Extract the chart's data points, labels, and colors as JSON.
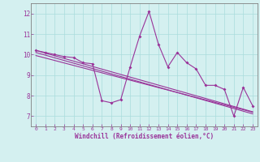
{
  "x": [
    0,
    1,
    2,
    3,
    4,
    5,
    6,
    7,
    8,
    9,
    10,
    11,
    12,
    13,
    14,
    15,
    16,
    17,
    18,
    19,
    20,
    21,
    22,
    23
  ],
  "y_main": [
    10.2,
    10.1,
    10.0,
    9.9,
    9.85,
    9.6,
    9.55,
    7.75,
    7.65,
    7.8,
    9.4,
    10.9,
    12.1,
    10.5,
    9.4,
    10.1,
    9.6,
    9.3,
    8.5,
    8.5,
    8.3,
    7.0,
    8.4,
    7.5
  ],
  "y_reg1": [
    10.2,
    10.07,
    9.94,
    9.81,
    9.68,
    9.55,
    9.42,
    9.29,
    9.16,
    9.03,
    8.9,
    8.77,
    8.64,
    8.51,
    8.38,
    8.25,
    8.12,
    7.99,
    7.86,
    7.73,
    7.6,
    7.47,
    7.34,
    7.21
  ],
  "y_reg2": [
    10.1,
    9.97,
    9.84,
    9.71,
    9.58,
    9.45,
    9.32,
    9.19,
    9.06,
    8.93,
    8.8,
    8.67,
    8.54,
    8.41,
    8.28,
    8.15,
    8.02,
    7.89,
    7.76,
    7.63,
    7.5,
    7.37,
    7.24,
    7.11
  ],
  "y_reg3": [
    9.95,
    9.83,
    9.71,
    9.59,
    9.47,
    9.35,
    9.23,
    9.11,
    8.99,
    8.87,
    8.75,
    8.63,
    8.51,
    8.39,
    8.27,
    8.15,
    8.03,
    7.91,
    7.79,
    7.67,
    7.55,
    7.43,
    7.31,
    7.19
  ],
  "line_color": "#993399",
  "bg_color": "#d4f0f0",
  "grid_color": "#aadcdc",
  "axis_color": "#808080",
  "xlabel": "Windchill (Refroidissement éolien,°C)",
  "ylim": [
    6.5,
    12.5
  ],
  "xlim": [
    -0.5,
    23.5
  ],
  "yticks": [
    7,
    8,
    9,
    10,
    11,
    12
  ],
  "xticks": [
    0,
    1,
    2,
    3,
    4,
    5,
    6,
    7,
    8,
    9,
    10,
    11,
    12,
    13,
    14,
    15,
    16,
    17,
    18,
    19,
    20,
    21,
    22,
    23
  ]
}
